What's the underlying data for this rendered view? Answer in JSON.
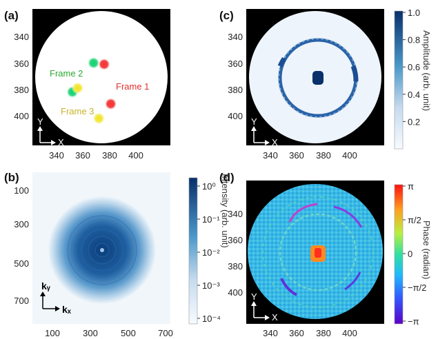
{
  "panels": {
    "a": {
      "label": "(a)",
      "xticks": [
        "340",
        "360",
        "380",
        "400"
      ],
      "yticks": [
        "340",
        "360",
        "380",
        "400"
      ],
      "axis_x": "X",
      "axis_y": "Y",
      "frames": [
        {
          "label": "Frame 1",
          "color": "#e0302e"
        },
        {
          "label": "Frame 2",
          "color": "#2aa832"
        },
        {
          "label": "Frame 3",
          "color": "#c9b22a"
        }
      ],
      "dots": [
        {
          "color": "#1fd36a",
          "x": 368,
          "y": 360
        },
        {
          "color": "#f03a3a",
          "x": 376,
          "y": 361
        },
        {
          "color": "#1fd36a",
          "x": 352,
          "y": 382
        },
        {
          "color": "#f2e53a",
          "x": 356,
          "y": 379
        },
        {
          "color": "#f03a3a",
          "x": 381,
          "y": 391
        },
        {
          "color": "#f2e53a",
          "x": 372,
          "y": 402
        }
      ]
    },
    "b": {
      "label": "(b)",
      "xticks": [
        "100",
        "300",
        "500",
        "700"
      ],
      "yticks": [
        "100",
        "300",
        "500",
        "700"
      ],
      "axis_x": "kₓ",
      "axis_y": "kᵧ",
      "colorbar_label": "Intensity (arb. unit)",
      "colorbar_ticks": [
        "10⁰",
        "10⁻¹",
        "10⁻²",
        "10⁻³",
        "10⁻⁴"
      ]
    },
    "c": {
      "label": "(c)",
      "xticks": [
        "340",
        "360",
        "380",
        "400"
      ],
      "yticks": [
        "340",
        "360",
        "380",
        "400"
      ],
      "axis_x": "X",
      "axis_y": "Y",
      "colorbar_label": "Amplitude (arb. unit)",
      "colorbar_ticks": [
        "1.0",
        "0.8",
        "0.6",
        "0.4",
        "0.2"
      ]
    },
    "d": {
      "label": "(d)",
      "xticks": [
        "340",
        "360",
        "380",
        "400"
      ],
      "yticks": [
        "340",
        "360",
        "380",
        "400"
      ],
      "axis_x": "X",
      "axis_y": "Y",
      "colorbar_label": "Phase (radian)",
      "colorbar_ticks": [
        "π",
        "π/2",
        "0",
        "−π/2",
        "−π"
      ]
    }
  },
  "colors": {
    "blue_dark": "#08306b",
    "blue_mid": "#2f7dbf",
    "blue_light": "#f3f8fd",
    "background_black": "#000000"
  }
}
